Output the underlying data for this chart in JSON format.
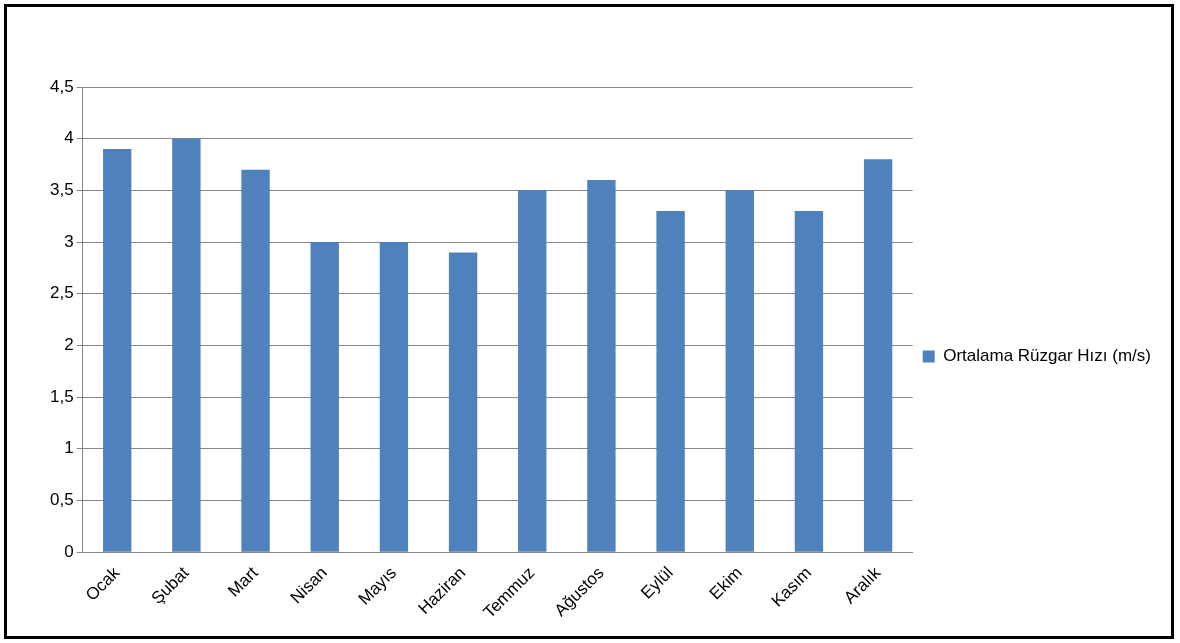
{
  "chart_data": {
    "type": "bar",
    "categories": [
      "Ocak",
      "Şubat",
      "Mart",
      "Nisan",
      "Mayıs",
      "Haziran",
      "Temmuz",
      "Ağustos",
      "Eylül",
      "Ekim",
      "Kasım",
      "Aralık"
    ],
    "series": [
      {
        "name": "Ortalama Rüzgar Hızı (m/s)",
        "color": "#4f81bd",
        "values": [
          3.9,
          4.0,
          3.7,
          3.0,
          3.0,
          2.9,
          3.5,
          3.6,
          3.3,
          3.5,
          3.3,
          3.8
        ]
      }
    ],
    "ylim": [
      0,
      4.5
    ],
    "yticks": [
      0,
      {
        "value": 0.5,
        "label": "0,5"
      },
      1,
      {
        "value": 1.5,
        "label": "1,5"
      },
      2,
      {
        "value": 2.5,
        "label": "2,5"
      },
      3,
      {
        "value": 3.5,
        "label": "3,5"
      },
      4,
      {
        "value": 4.5,
        "label": "4,5"
      }
    ],
    "grid": "y",
    "legend": "right"
  }
}
